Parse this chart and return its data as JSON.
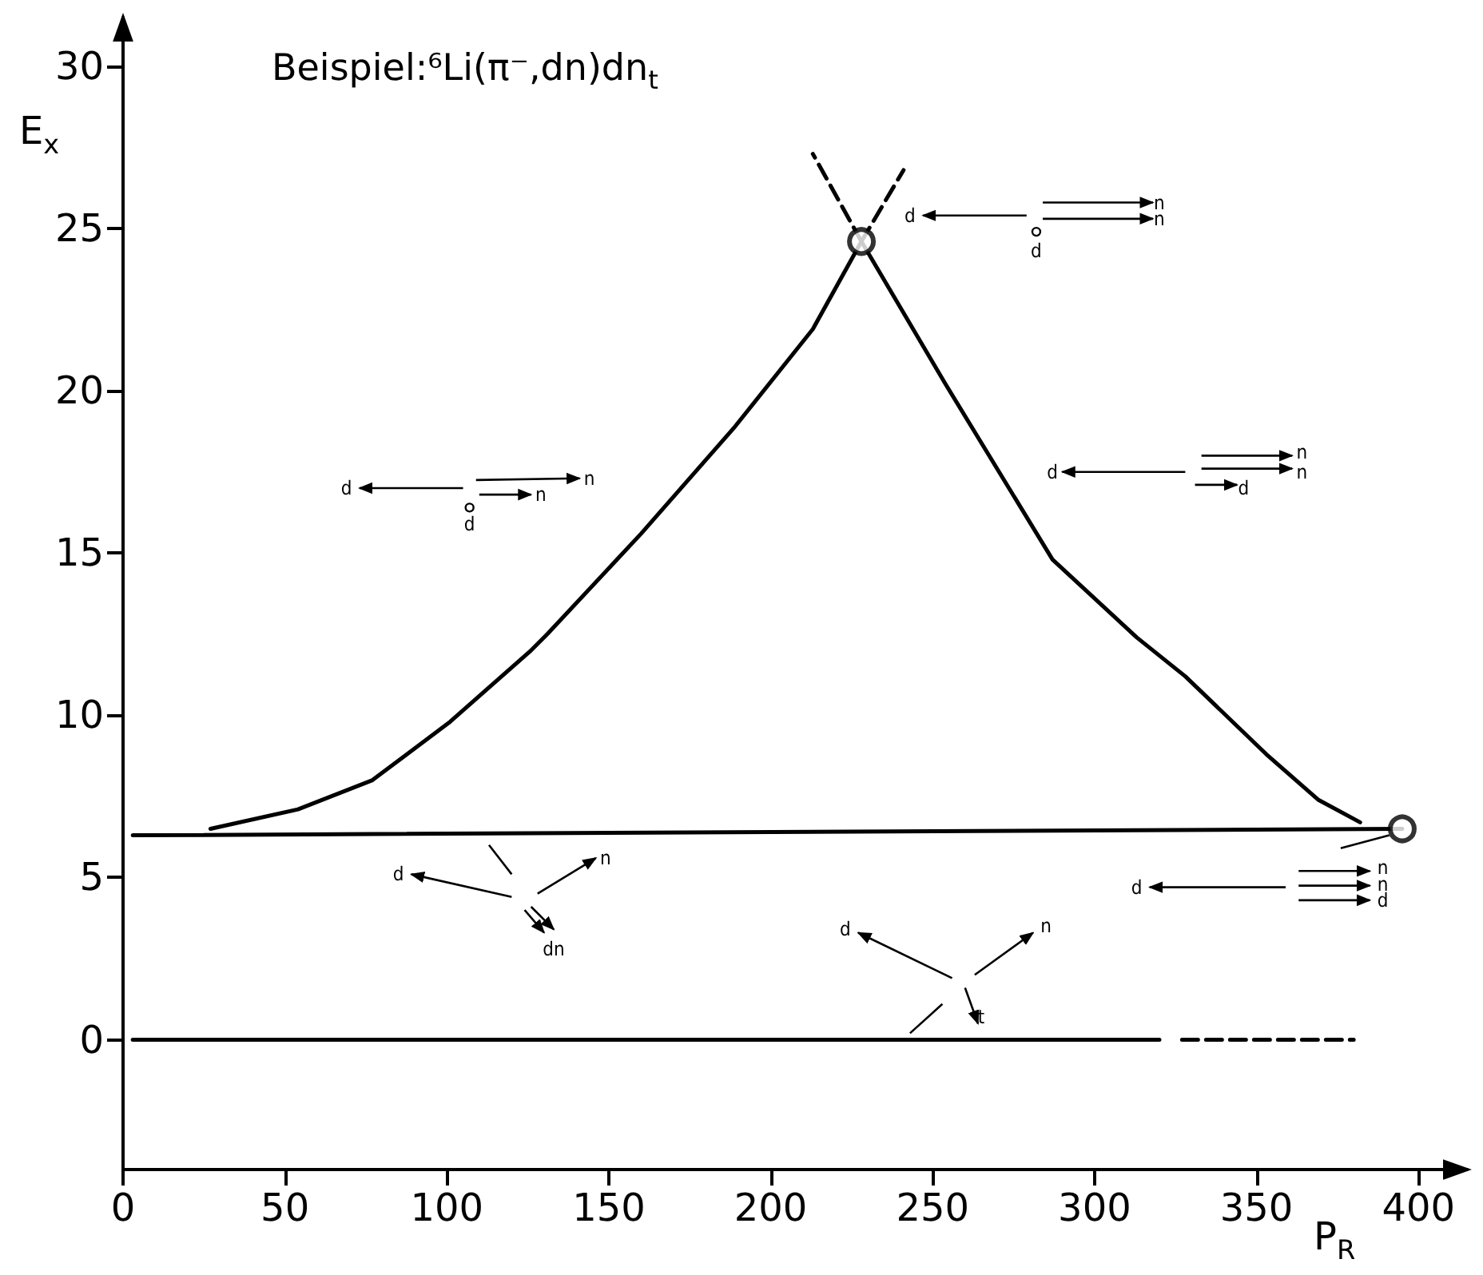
{
  "chart_data": {
    "type": "line",
    "title": "Beispiel:⁶Li(π⁻,dn)dn$_{t}$",
    "xlabel": "P$_{R}$",
    "ylabel": "E$_{x}$",
    "xlim": [
      0,
      415
    ],
    "ylim": [
      -4,
      31.5
    ],
    "xticks": [
      0,
      50,
      100,
      150,
      200,
      250,
      300,
      350,
      400
    ],
    "yticks": [
      0,
      5,
      10,
      15,
      20,
      25,
      30
    ],
    "grid": false,
    "marker": "none",
    "series": [
      {
        "color": "#000000",
        "line_style": "solid",
        "x": [
          27,
          54,
          77,
          101,
          126,
          131,
          160,
          189,
          213,
          228,
          254,
          287,
          313,
          328,
          353,
          369,
          382
        ],
        "values": [
          6.5,
          7.1,
          8.0,
          9.8,
          12.0,
          12.5,
          15.6,
          18.9,
          21.9,
          24.6,
          20.2,
          14.8,
          12.4,
          11.2,
          8.8,
          7.4,
          6.7
        ]
      },
      {
        "color": "#000000",
        "line_style": "solid",
        "x": [
          3,
          395
        ],
        "values": [
          6.3,
          6.5
        ]
      },
      {
        "type": "line",
        "color": "#000000",
        "line_style": "solid",
        "x": [
          3,
          320
        ],
        "values": [
          0,
          0
        ]
      },
      {
        "type": "line",
        "color": "#000000",
        "line_style": "dashed",
        "x": [
          327,
          380
        ],
        "values": [
          0,
          0
        ]
      },
      {
        "type": "line",
        "color": "#000000",
        "line_style": "dashed",
        "x": [
          228,
          213
        ],
        "values": [
          24.6,
          27.3
        ]
      },
      {
        "type": "line",
        "color": "#000000",
        "line_style": "dashed",
        "x": [
          228,
          241
        ],
        "values": [
          24.6,
          26.8
        ]
      },
      {
        "type": "scatter",
        "color": "#000000",
        "marker": "circle",
        "x": [
          228,
          395
        ],
        "values": [
          24.6,
          6.5
        ]
      }
    ],
    "annotations": [
      "d",
      "n",
      "n",
      "d",
      "d",
      "n",
      "n",
      "d",
      "d",
      "n",
      "n",
      "d",
      "d",
      "n",
      "dn",
      "d",
      "n",
      "n",
      "d",
      "d",
      "n",
      "t"
    ]
  }
}
